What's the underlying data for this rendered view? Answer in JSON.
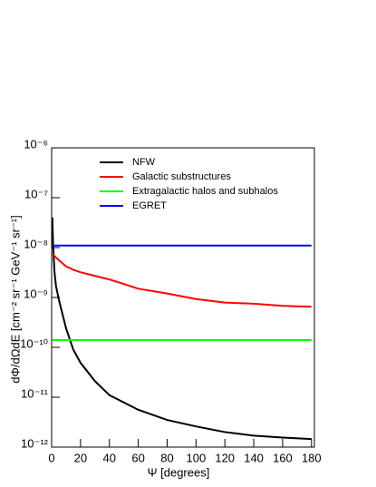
{
  "chart_data": {
    "type": "line",
    "x_label": "Ψ [degrees]",
    "y_label": "dΦ/dΩdE [cm⁻² sr⁻¹ GeV⁻¹ sr⁻¹]",
    "x": [
      0.5,
      1,
      2,
      3,
      5,
      10,
      15,
      20,
      30,
      40,
      60,
      80,
      100,
      120,
      140,
      160,
      180
    ],
    "series": [
      {
        "name": "NFW",
        "color": "#000000",
        "values": [
          4e-08,
          1.1e-08,
          3.2e-09,
          1.7e-09,
          9e-10,
          2.4e-10,
          9e-11,
          4.9e-11,
          2.1e-11,
          1.1e-11,
          5.6e-12,
          3.5e-12,
          2.6e-12,
          2e-12,
          1.7e-12,
          1.55e-12,
          1.45e-12
        ]
      },
      {
        "name": "Galactic substructures",
        "color": "#ff0000",
        "values": [
          7.5e-09,
          7.2e-09,
          6.8e-09,
          6.3e-09,
          5.6e-09,
          4.2e-09,
          3.6e-09,
          3.2e-09,
          2.7e-09,
          2.3e-09,
          1.5e-09,
          1.2e-09,
          9.3e-10,
          7.9e-10,
          7.5e-10,
          6.8e-10,
          6.5e-10
        ]
      },
      {
        "name": "Extragalactic halos and subhalos",
        "color": "#00ff00",
        "values": [
          1.4e-10,
          1.4e-10,
          1.4e-10,
          1.4e-10,
          1.4e-10,
          1.4e-10,
          1.4e-10,
          1.4e-10,
          1.4e-10,
          1.4e-10,
          1.4e-10,
          1.4e-10,
          1.4e-10,
          1.4e-10,
          1.4e-10,
          1.4e-10,
          1.4e-10
        ]
      },
      {
        "name": "EGRET",
        "color": "#0000ff",
        "values": [
          1.1e-08,
          1.1e-08,
          1.1e-08,
          1.1e-08,
          1.1e-08,
          1.1e-08,
          1.1e-08,
          1.1e-08,
          1.1e-08,
          1.1e-08,
          1.1e-08,
          1.1e-08,
          1.1e-08,
          1.1e-08,
          1.1e-08,
          1.1e-08,
          1.1e-08
        ]
      }
    ],
    "xlim": [
      0,
      182
    ],
    "xticks": [
      0,
      20,
      40,
      60,
      80,
      100,
      120,
      140,
      160,
      180
    ],
    "ylim": [
      1e-12,
      1e-06
    ],
    "log_y": true,
    "yticks": [
      {
        "value": 1e-12,
        "label": "10⁻¹²"
      },
      {
        "value": 1e-11,
        "label": "10⁻¹¹"
      },
      {
        "value": 1e-10,
        "label": "10⁻¹⁰"
      },
      {
        "value": 1e-09,
        "label": "10⁻⁹"
      },
      {
        "value": 1e-08,
        "label": "10⁻⁸"
      },
      {
        "value": 1e-07,
        "label": "10⁻⁷"
      },
      {
        "value": 1e-06,
        "label": "10⁻⁶"
      }
    ],
    "legend": "top-left"
  }
}
